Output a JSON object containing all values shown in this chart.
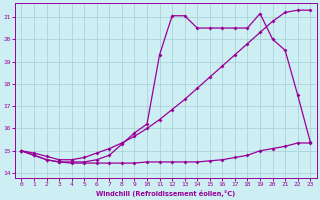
{
  "xlabel": "Windchill (Refroidissement éolien,°C)",
  "background_color": "#cdeef2",
  "grid_color": "#aad4da",
  "line_color": "#990099",
  "xlim": [
    -0.5,
    23.5
  ],
  "ylim": [
    13.8,
    21.6
  ],
  "yticks": [
    14,
    15,
    16,
    17,
    18,
    19,
    20,
    21
  ],
  "xticks": [
    0,
    1,
    2,
    3,
    4,
    5,
    6,
    7,
    8,
    9,
    10,
    11,
    12,
    13,
    14,
    15,
    16,
    17,
    18,
    19,
    20,
    21,
    22,
    23
  ],
  "line1_x": [
    0,
    1,
    2,
    3,
    4,
    5,
    6,
    7,
    8,
    9,
    10,
    11,
    12,
    13,
    14,
    15,
    16,
    17,
    18,
    19,
    20,
    21,
    22,
    23
  ],
  "line1_y": [
    15.0,
    14.8,
    14.6,
    14.5,
    14.45,
    14.45,
    14.45,
    14.45,
    14.45,
    14.45,
    14.5,
    14.5,
    14.5,
    14.5,
    14.5,
    14.55,
    14.6,
    14.7,
    14.8,
    15.0,
    15.1,
    15.2,
    15.35,
    15.35
  ],
  "line2_x": [
    0,
    1,
    2,
    3,
    4,
    5,
    6,
    7,
    8,
    9,
    10,
    11,
    12,
    13,
    14,
    15,
    16,
    17,
    18,
    19,
    20,
    21,
    22,
    23
  ],
  "line2_y": [
    15.0,
    14.9,
    14.75,
    14.6,
    14.6,
    14.7,
    14.9,
    15.1,
    15.35,
    15.65,
    16.0,
    16.4,
    16.85,
    17.3,
    17.8,
    18.3,
    18.8,
    19.3,
    19.8,
    20.3,
    20.8,
    21.2,
    21.3,
    21.3
  ],
  "line3_x": [
    0,
    1,
    2,
    3,
    4,
    5,
    6,
    7,
    8,
    9,
    10,
    11,
    12,
    13,
    14,
    15,
    16,
    17,
    18,
    19,
    20,
    21,
    22,
    23
  ],
  "line3_y": [
    15.0,
    14.8,
    14.6,
    14.5,
    14.5,
    14.5,
    14.6,
    14.8,
    15.3,
    15.8,
    16.2,
    19.3,
    21.05,
    21.05,
    20.5,
    20.5,
    20.5,
    20.5,
    20.5,
    21.15,
    20.0,
    19.5,
    17.5,
    15.4
  ]
}
